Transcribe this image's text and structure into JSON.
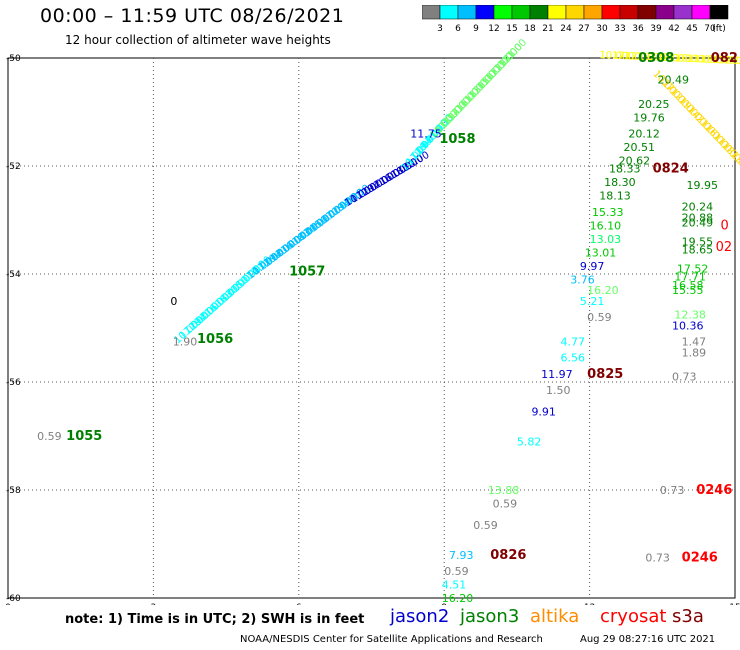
{
  "header": {
    "title": "00:00 – 11:59 UTC 08/26/2021",
    "subtitle": "12 hour collection of altimeter wave heights"
  },
  "colorbar": {
    "labels": [
      "3",
      "6",
      "9",
      "12",
      "15",
      "18",
      "21",
      "24",
      "27",
      "30",
      "33",
      "36",
      "39",
      "42",
      "45",
      "70",
      "(ft)"
    ],
    "colors": [
      "#808080",
      "#00ffff",
      "#00bfff",
      "#0000ff",
      "#00ff00",
      "#00c800",
      "#008000",
      "#ffff00",
      "#ffd700",
      "#ffa500",
      "#ff0000",
      "#c80000",
      "#800000",
      "#8b008b",
      "#9932cc",
      "#ff00ff",
      "#000000"
    ]
  },
  "axes": {
    "x_ticks": [
      "0",
      "3",
      "6",
      "9",
      "12",
      "15"
    ],
    "y_ticks": [
      "-50",
      "-52",
      "-54",
      "-56",
      "-58",
      "-60"
    ]
  },
  "labels": [
    {
      "text": "0.59",
      "x": 0.6,
      "y": -57.0,
      "color": "#808080",
      "size": 11
    },
    {
      "text": "1055",
      "x": 1.2,
      "y": -57.0,
      "color": "#008000",
      "size": 13,
      "bold": true
    },
    {
      "text": "1056",
      "x": 3.9,
      "y": -55.2,
      "color": "#008000",
      "size": 13,
      "bold": true
    },
    {
      "text": "1.90",
      "x": 3.4,
      "y": -55.25,
      "color": "#808080",
      "size": 11
    },
    {
      "text": "1057",
      "x": 5.8,
      "y": -53.95,
      "color": "#008000",
      "size": 13,
      "bold": true
    },
    {
      "text": "1058",
      "x": 8.9,
      "y": -51.5,
      "color": "#008000",
      "size": 13,
      "bold": true
    },
    {
      "text": "11.75",
      "x": 8.3,
      "y": -51.4,
      "color": "#0000cd",
      "size": 11
    },
    {
      "text": "0308",
      "x": 13.0,
      "y": -50.0,
      "color": "#008000",
      "size": 13,
      "bold": true
    },
    {
      "text": "082",
      "x": 14.5,
      "y": -50.0,
      "color": "#800000",
      "size": 13,
      "bold": true
    },
    {
      "text": "20.49",
      "x": 13.4,
      "y": -50.4,
      "color": "#008000",
      "size": 11
    },
    {
      "text": "20.25",
      "x": 13.0,
      "y": -50.85,
      "color": "#008000",
      "size": 11
    },
    {
      "text": "19.76",
      "x": 12.9,
      "y": -51.1,
      "color": "#008000",
      "size": 11
    },
    {
      "text": "20.12",
      "x": 12.8,
      "y": -51.4,
      "color": "#008000",
      "size": 11
    },
    {
      "text": "20.51",
      "x": 12.7,
      "y": -51.65,
      "color": "#008000",
      "size": 11
    },
    {
      "text": "20.62",
      "x": 12.6,
      "y": -51.9,
      "color": "#008000",
      "size": 11
    },
    {
      "text": "18.33",
      "x": 12.4,
      "y": -52.05,
      "color": "#008000",
      "size": 11
    },
    {
      "text": "0824",
      "x": 13.3,
      "y": -52.05,
      "color": "#800000",
      "size": 13,
      "bold": true
    },
    {
      "text": "18.30",
      "x": 12.3,
      "y": -52.3,
      "color": "#008000",
      "size": 11
    },
    {
      "text": "18.13",
      "x": 12.2,
      "y": -52.55,
      "color": "#008000",
      "size": 11
    },
    {
      "text": "19.95",
      "x": 14.0,
      "y": -52.35,
      "color": "#008000",
      "size": 11
    },
    {
      "text": "15.33",
      "x": 12.05,
      "y": -52.85,
      "color": "#00c800",
      "size": 11
    },
    {
      "text": "20.24",
      "x": 13.9,
      "y": -52.75,
      "color": "#008000",
      "size": 11
    },
    {
      "text": "16.10",
      "x": 12.0,
      "y": -53.1,
      "color": "#00c800",
      "size": 11
    },
    {
      "text": "20.88",
      "x": 13.9,
      "y": -52.95,
      "color": "#008000",
      "size": 11
    },
    {
      "text": "20.49",
      "x": 13.9,
      "y": -53.05,
      "color": "#008000",
      "size": 11
    },
    {
      "text": "0",
      "x": 14.7,
      "y": -53.1,
      "color": "#ff0000",
      "size": 13
    },
    {
      "text": "13.03",
      "x": 12.0,
      "y": -53.35,
      "color": "#00ff66",
      "size": 11
    },
    {
      "text": "19.55",
      "x": 13.9,
      "y": -53.4,
      "color": "#008000",
      "size": 11
    },
    {
      "text": "18.65",
      "x": 13.9,
      "y": -53.55,
      "color": "#008000",
      "size": 11
    },
    {
      "text": "02",
      "x": 14.6,
      "y": -53.5,
      "color": "#ff0000",
      "size": 13
    },
    {
      "text": "13.01",
      "x": 11.9,
      "y": -53.6,
      "color": "#00c800",
      "size": 11
    },
    {
      "text": "9.97",
      "x": 11.8,
      "y": -53.85,
      "color": "#0000cd",
      "size": 11
    },
    {
      "text": "17.52",
      "x": 13.8,
      "y": -53.9,
      "color": "#00c800",
      "size": 11
    },
    {
      "text": "17.71",
      "x": 13.75,
      "y": -54.05,
      "color": "#00c800",
      "size": 11
    },
    {
      "text": "3.76",
      "x": 11.6,
      "y": -54.1,
      "color": "#00bfff",
      "size": 11
    },
    {
      "text": "16.58",
      "x": 13.7,
      "y": -54.2,
      "color": "#00c800",
      "size": 11
    },
    {
      "text": "16.20",
      "x": 11.95,
      "y": -54.3,
      "color": "#66ff66",
      "size": 11
    },
    {
      "text": "15.55",
      "x": 13.7,
      "y": -54.3,
      "color": "#00c800",
      "size": 11
    },
    {
      "text": "5.21",
      "x": 11.8,
      "y": -54.5,
      "color": "#00ffff",
      "size": 11
    },
    {
      "text": "0.59",
      "x": 11.95,
      "y": -54.8,
      "color": "#808080",
      "size": 11
    },
    {
      "text": "12.38",
      "x": 13.75,
      "y": -54.75,
      "color": "#66ff66",
      "size": 11
    },
    {
      "text": "10.36",
      "x": 13.7,
      "y": -54.95,
      "color": "#0000cd",
      "size": 11
    },
    {
      "text": "4.77",
      "x": 11.4,
      "y": -55.25,
      "color": "#00ffff",
      "size": 11
    },
    {
      "text": "1.47",
      "x": 13.9,
      "y": -55.25,
      "color": "#808080",
      "size": 11
    },
    {
      "text": "6.56",
      "x": 11.4,
      "y": -55.55,
      "color": "#00ffff",
      "size": 11
    },
    {
      "text": "1.89",
      "x": 13.9,
      "y": -55.45,
      "color": "#808080",
      "size": 11
    },
    {
      "text": "11.97",
      "x": 11.0,
      "y": -55.85,
      "color": "#0000cd",
      "size": 11
    },
    {
      "text": "0825",
      "x": 11.95,
      "y": -55.85,
      "color": "#800000",
      "size": 13,
      "bold": true
    },
    {
      "text": "0.73",
      "x": 13.7,
      "y": -55.9,
      "color": "#808080",
      "size": 11
    },
    {
      "text": "1.50",
      "x": 11.1,
      "y": -56.15,
      "color": "#808080",
      "size": 11
    },
    {
      "text": "9.91",
      "x": 10.8,
      "y": -56.55,
      "color": "#0000cd",
      "size": 11
    },
    {
      "text": "5.82",
      "x": 10.5,
      "y": -57.1,
      "color": "#00ffff",
      "size": 11
    },
    {
      "text": "13.88",
      "x": 9.9,
      "y": -58.0,
      "color": "#66ff66",
      "size": 11
    },
    {
      "text": "0.73",
      "x": 13.45,
      "y": -58.0,
      "color": "#808080",
      "size": 11
    },
    {
      "text": "0246",
      "x": 14.2,
      "y": -58.0,
      "color": "#ff0000",
      "size": 13,
      "bold": true
    },
    {
      "text": "0.59",
      "x": 10.0,
      "y": -58.25,
      "color": "#808080",
      "size": 11
    },
    {
      "text": "0.59",
      "x": 9.6,
      "y": -58.65,
      "color": "#808080",
      "size": 11
    },
    {
      "text": "7.93",
      "x": 9.1,
      "y": -59.2,
      "color": "#00bfff",
      "size": 11
    },
    {
      "text": "0826",
      "x": 9.95,
      "y": -59.2,
      "color": "#800000",
      "size": 13,
      "bold": true
    },
    {
      "text": "0.73",
      "x": 13.15,
      "y": -59.25,
      "color": "#808080",
      "size": 11
    },
    {
      "text": "0246",
      "x": 13.9,
      "y": -59.25,
      "color": "#ff0000",
      "size": 13,
      "bold": true
    },
    {
      "text": "0.59",
      "x": 9.0,
      "y": -59.5,
      "color": "#808080",
      "size": 11
    },
    {
      "text": "4.51",
      "x": 8.95,
      "y": -59.75,
      "color": "#00ffff",
      "size": 11
    },
    {
      "text": "16.20",
      "x": 8.95,
      "y": -60.0,
      "color": "#00c800",
      "size": 11
    },
    {
      "text": "0",
      "x": 3.35,
      "y": -54.5,
      "color": "#000000",
      "size": 11
    }
  ],
  "tracks": [
    {
      "from": [
        3.5,
        -55.3
      ],
      "to": [
        5.0,
        -54.1
      ],
      "color": "#00ffff",
      "step": 0.14
    },
    {
      "from": [
        5.0,
        -54.1
      ],
      "to": [
        7.0,
        -52.75
      ],
      "color": "#00bfff",
      "step": 0.14
    },
    {
      "from": [
        7.0,
        -52.75
      ],
      "to": [
        8.2,
        -52.1
      ],
      "color": "#0000cd",
      "step": 0.14
    },
    {
      "from": [
        8.2,
        -52.1
      ],
      "to": [
        8.8,
        -51.5
      ],
      "color": "#00ffff",
      "step": 0.14
    },
    {
      "from": [
        8.8,
        -51.5
      ],
      "to": [
        10.3,
        -50.1
      ],
      "color": "#66ff66",
      "step": 0.12
    },
    {
      "from": [
        12.2,
        -50.0
      ],
      "to": [
        14.8,
        -50.1
      ],
      "color": "#ffff00",
      "step": 0.25
    },
    {
      "from": [
        13.3,
        -50.3
      ],
      "to": [
        14.9,
        -51.8
      ],
      "color": "#ffd700",
      "step": 0.25
    }
  ],
  "footer": {
    "note": "note: 1) Time is in UTC; 2) SWH is in feet",
    "sats": [
      {
        "name": "jason2",
        "color": "#0000cd"
      },
      {
        "name": "jason3",
        "color": "#008000"
      },
      {
        "name": "altika",
        "color": "#ff8c00"
      },
      {
        "name": "cryosat",
        "color": "#ff0000"
      },
      {
        "name": "s3a",
        "color": "#800000"
      }
    ],
    "credit": "NOAA/NESDIS Center for Satellite Applications and Research",
    "timestamp": "Aug 29 08:27:16 UTC 2021"
  }
}
